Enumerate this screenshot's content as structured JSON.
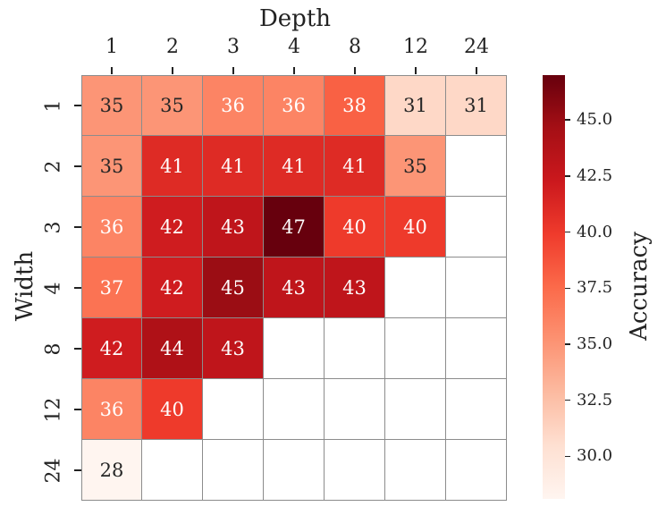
{
  "chart_data": {
    "type": "heatmap",
    "title": "",
    "xlabel": "Depth",
    "ylabel": "Width",
    "x_position": "top",
    "categories_x": [
      "1",
      "2",
      "3",
      "4",
      "8",
      "12",
      "24"
    ],
    "categories_y": [
      "1",
      "2",
      "3",
      "4",
      "8",
      "12",
      "24"
    ],
    "values": [
      [
        35,
        35,
        36,
        36,
        38,
        31,
        31
      ],
      [
        35,
        41,
        41,
        41,
        41,
        35,
        null
      ],
      [
        36,
        42,
        43,
        47,
        40,
        40,
        null
      ],
      [
        37,
        42,
        45,
        43,
        43,
        null,
        null
      ],
      [
        42,
        44,
        43,
        null,
        null,
        null,
        null
      ],
      [
        36,
        40,
        null,
        null,
        null,
        null,
        null
      ],
      [
        28,
        null,
        null,
        null,
        null,
        null,
        null
      ]
    ],
    "colormap": "Reds",
    "vmin": 28.1,
    "vmax": 47.0,
    "colorbar": {
      "label": "Accuracy",
      "ticks": [
        "30.0",
        "32.5",
        "35.0",
        "37.5",
        "40.0",
        "42.5",
        "45.0"
      ],
      "tick_values": [
        30.0,
        32.5,
        35.0,
        37.5,
        40.0,
        42.5,
        45.0
      ]
    },
    "annotations_shown": true,
    "missing_cell_color": "#ffffff",
    "grid_line_color": "#8c8c8c"
  }
}
